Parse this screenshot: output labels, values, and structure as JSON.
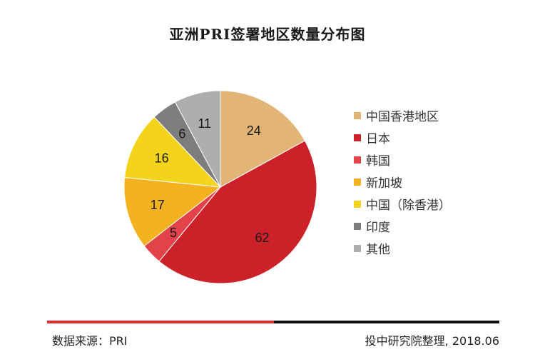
{
  "chart_data": {
    "type": "pie",
    "title": "亚洲PRI签署地区数量分布图",
    "categories": [
      "中国香港地区",
      "日本",
      "韩国",
      "新加坡",
      "中国（除香港）",
      "印度",
      "其他"
    ],
    "values": [
      24,
      62,
      5,
      17,
      16,
      6,
      11
    ],
    "colors": [
      "#e2b577",
      "#cc2129",
      "#e3424b",
      "#f5b21f",
      "#f4d31b",
      "#7d7d7d",
      "#aeaeae"
    ],
    "legend_position": "right"
  },
  "footer": {
    "source": "数据来源：PRI",
    "credit": "投中研究院整理, 2018.06"
  }
}
